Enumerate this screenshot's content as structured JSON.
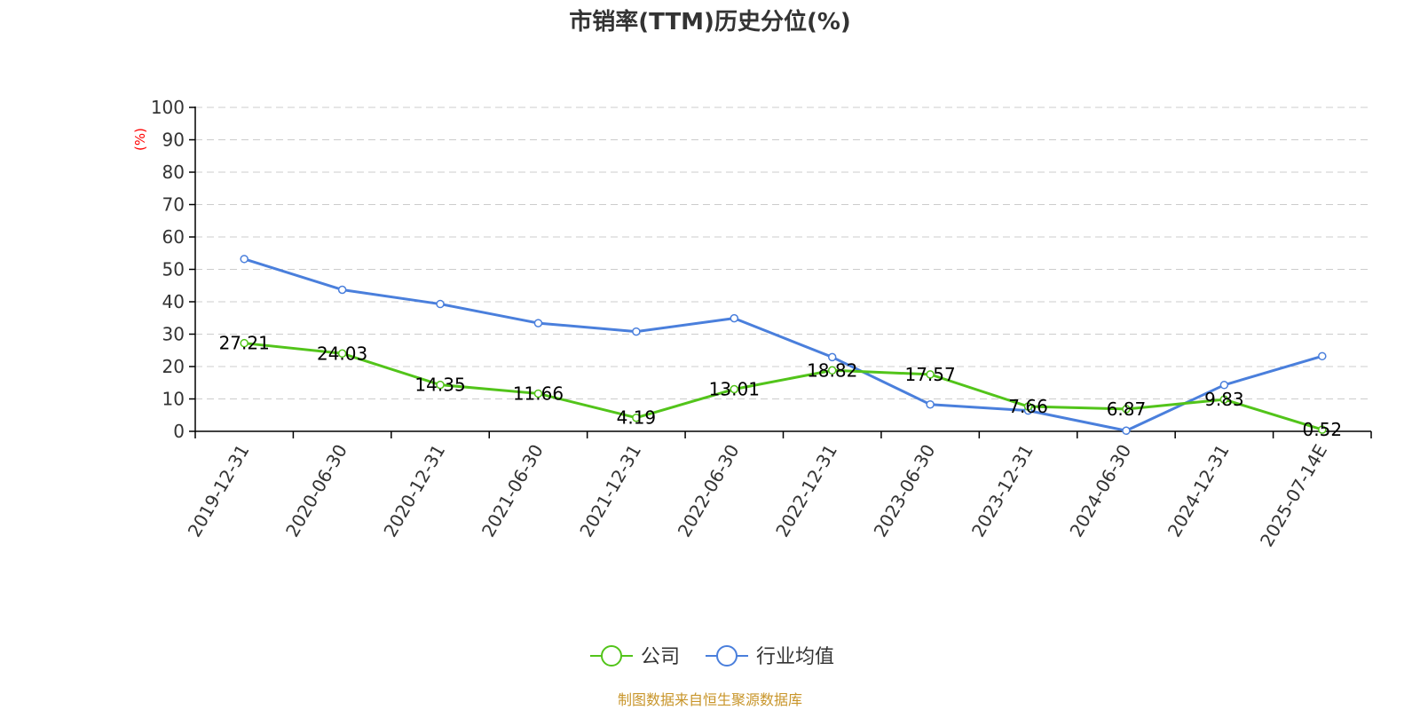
{
  "chart_data": {
    "type": "line",
    "title": "市销率(TTM)历史分位(%)",
    "ylabel": "(%)",
    "xlabel": "",
    "ylim": [
      0,
      100
    ],
    "yticks": [
      0,
      10,
      20,
      30,
      40,
      50,
      60,
      70,
      80,
      90,
      100
    ],
    "categories": [
      "2019-12-31",
      "2020-06-30",
      "2020-12-31",
      "2021-06-30",
      "2021-12-31",
      "2022-06-30",
      "2022-12-31",
      "2023-06-30",
      "2023-12-31",
      "2024-06-30",
      "2024-12-31",
      "2025-07-14E"
    ],
    "grid": true,
    "legend_position": "bottom",
    "series": [
      {
        "name": "公司",
        "color": "#52c41a",
        "show_labels": true,
        "values": [
          27.21,
          24.03,
          14.35,
          11.66,
          4.19,
          13.01,
          18.82,
          17.57,
          7.66,
          6.87,
          9.83,
          0.52
        ]
      },
      {
        "name": "行业均值",
        "color": "#4a7fdc",
        "show_labels": false,
        "values": [
          53.2,
          43.7,
          39.3,
          33.4,
          30.8,
          34.9,
          22.9,
          8.3,
          6.4,
          0.2,
          14.3,
          23.2
        ]
      }
    ]
  },
  "source": "制图数据来自恒生聚源数据库"
}
